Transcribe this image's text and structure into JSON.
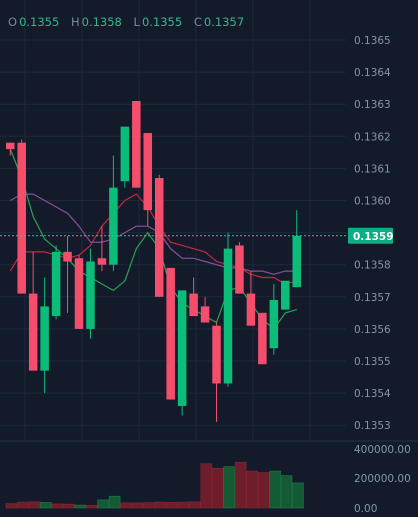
{
  "legend": {
    "open_key": "O",
    "open_value": "0.1355",
    "high_key": "H",
    "high_value": "0.1358",
    "low_key": "L",
    "low_value": "0.1355",
    "close_key": "C",
    "close_value": "0.1357"
  },
  "last_price_label": "0.1359",
  "colors": {
    "background": "#131b2b",
    "up": "#0cbd7a",
    "down": "#f44e6c",
    "ma_green": "#24a34e",
    "ma_red": "#c8263a",
    "ma_purple": "#8a4f9c",
    "price_line": "#22c7a0",
    "grid": "#1e2838",
    "axis_text": "#8a93a3"
  },
  "chart_data": {
    "type": "candlestick",
    "price_axis": {
      "ticks": [
        "0.1365",
        "0.1364",
        "0.1363",
        "0.1362",
        "0.1361",
        "0.1360",
        "0.1359",
        "0.1358",
        "0.1357",
        "0.1356",
        "0.1355",
        "0.1354",
        "0.1353"
      ],
      "ylim": [
        0.13525,
        0.13665
      ]
    },
    "volume_axis": {
      "ticks": [
        "400000.00",
        "200000.00",
        "0.00"
      ],
      "ylim": [
        0,
        400000
      ]
    },
    "current_price": 0.13589,
    "candles": [
      {
        "o": 0.13618,
        "h": 0.13618,
        "l": 0.13614,
        "c": 0.13616
      },
      {
        "o": 0.13618,
        "h": 0.13619,
        "l": 0.13571,
        "c": 0.13571
      },
      {
        "o": 0.13571,
        "h": 0.13584,
        "l": 0.13547,
        "c": 0.13547
      },
      {
        "o": 0.13547,
        "h": 0.13576,
        "l": 0.1354,
        "c": 0.13567
      },
      {
        "o": 0.13564,
        "h": 0.13586,
        "l": 0.13563,
        "c": 0.13584
      },
      {
        "o": 0.13584,
        "h": 0.13589,
        "l": 0.13565,
        "c": 0.13581
      },
      {
        "o": 0.13582,
        "h": 0.13583,
        "l": 0.1356,
        "c": 0.1356
      },
      {
        "o": 0.1356,
        "h": 0.13585,
        "l": 0.13557,
        "c": 0.13581
      },
      {
        "o": 0.13582,
        "h": 0.13592,
        "l": 0.13578,
        "c": 0.1358
      },
      {
        "o": 0.1358,
        "h": 0.13614,
        "l": 0.13578,
        "c": 0.13604
      },
      {
        "o": 0.13606,
        "h": 0.13623,
        "l": 0.13604,
        "c": 0.13623
      },
      {
        "o": 0.13631,
        "h": 0.13631,
        "l": 0.13604,
        "c": 0.13604
      },
      {
        "o": 0.13621,
        "h": 0.13621,
        "l": 0.13592,
        "c": 0.13597
      },
      {
        "o": 0.13607,
        "h": 0.13608,
        "l": 0.1357,
        "c": 0.1357
      },
      {
        "o": 0.13579,
        "h": 0.13579,
        "l": 0.13538,
        "c": 0.13538
      },
      {
        "o": 0.13536,
        "h": 0.13572,
        "l": 0.13533,
        "c": 0.13572
      },
      {
        "o": 0.13571,
        "h": 0.13576,
        "l": 0.13564,
        "c": 0.13564
      },
      {
        "o": 0.13567,
        "h": 0.1357,
        "l": 0.13562,
        "c": 0.13562
      },
      {
        "o": 0.13561,
        "h": 0.13562,
        "l": 0.13531,
        "c": 0.13543
      },
      {
        "o": 0.13543,
        "h": 0.1359,
        "l": 0.13542,
        "c": 0.13585
      },
      {
        "o": 0.13586,
        "h": 0.13587,
        "l": 0.13571,
        "c": 0.13571
      },
      {
        "o": 0.13571,
        "h": 0.13578,
        "l": 0.13561,
        "c": 0.13561
      },
      {
        "o": 0.13565,
        "h": 0.13565,
        "l": 0.13549,
        "c": 0.13549
      },
      {
        "o": 0.13554,
        "h": 0.13574,
        "l": 0.13552,
        "c": 0.13569
      },
      {
        "o": 0.13566,
        "h": 0.13575,
        "l": 0.13566,
        "c": 0.13575
      },
      {
        "o": 0.13573,
        "h": 0.13597,
        "l": 0.13573,
        "c": 0.13589
      }
    ],
    "volumes": [
      {
        "v": 30000,
        "dir": "down"
      },
      {
        "v": 40000,
        "dir": "down"
      },
      {
        "v": 42000,
        "dir": "down"
      },
      {
        "v": 38000,
        "dir": "up"
      },
      {
        "v": 28000,
        "dir": "down"
      },
      {
        "v": 26000,
        "dir": "down"
      },
      {
        "v": 20000,
        "dir": "up"
      },
      {
        "v": 18000,
        "dir": "down"
      },
      {
        "v": 55000,
        "dir": "up"
      },
      {
        "v": 80000,
        "dir": "up"
      },
      {
        "v": 35000,
        "dir": "down"
      },
      {
        "v": 35000,
        "dir": "down"
      },
      {
        "v": 36000,
        "dir": "down"
      },
      {
        "v": 40000,
        "dir": "down"
      },
      {
        "v": 38000,
        "dir": "down"
      },
      {
        "v": 40000,
        "dir": "down"
      },
      {
        "v": 42000,
        "dir": "down"
      },
      {
        "v": 300000,
        "dir": "down"
      },
      {
        "v": 270000,
        "dir": "down"
      },
      {
        "v": 280000,
        "dir": "up"
      },
      {
        "v": 310000,
        "dir": "down"
      },
      {
        "v": 250000,
        "dir": "down"
      },
      {
        "v": 240000,
        "dir": "down"
      },
      {
        "v": 250000,
        "dir": "up"
      },
      {
        "v": 220000,
        "dir": "up"
      },
      {
        "v": 170000,
        "dir": "up"
      }
    ],
    "moving_averages": [
      {
        "color_key": "ma_green",
        "values": [
          0.13616,
          0.13607,
          0.13595,
          0.13588,
          0.13585,
          0.13582,
          0.13578,
          0.13576,
          0.13574,
          0.13572,
          0.13575,
          0.13585,
          0.1359,
          0.13585,
          0.13573,
          0.13568,
          0.13566,
          0.13564,
          0.13562,
          0.13572,
          0.13573,
          0.13568,
          0.13563,
          0.1356,
          0.13565,
          0.13566
        ]
      },
      {
        "color_key": "ma_red",
        "values": [
          0.13578,
          0.13584,
          0.13584,
          0.13584,
          0.13583,
          0.13582,
          0.13583,
          0.13586,
          0.13592,
          0.13596,
          0.136,
          0.13602,
          0.13598,
          0.13592,
          0.13587,
          0.13586,
          0.13585,
          0.13584,
          0.13581,
          0.1358,
          0.13579,
          0.13577,
          0.13576,
          0.13576,
          0.13574,
          0.13575
        ]
      },
      {
        "color_key": "ma_purple",
        "values": [
          0.136,
          0.13602,
          0.13602,
          0.136,
          0.13598,
          0.13596,
          0.13592,
          0.13587,
          0.13587,
          0.13588,
          0.1359,
          0.13592,
          0.13592,
          0.1359,
          0.13585,
          0.13582,
          0.13582,
          0.13581,
          0.1358,
          0.13579,
          0.13579,
          0.13578,
          0.13578,
          0.13577,
          0.13578,
          0.13578
        ]
      }
    ]
  }
}
